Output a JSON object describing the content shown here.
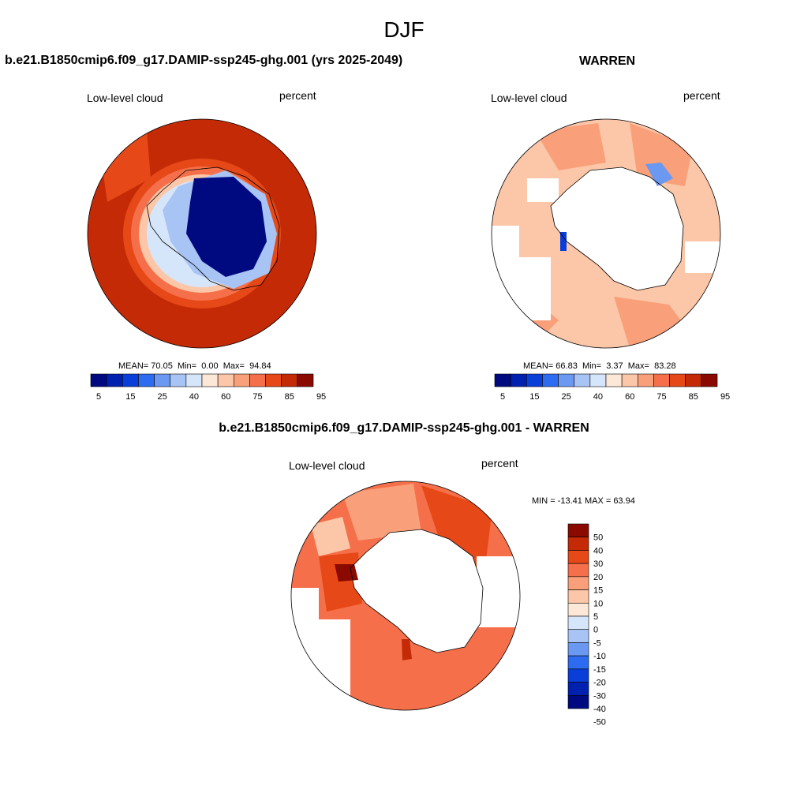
{
  "figure_title": "DJF",
  "colors": {
    "abs_levels": [
      "#000a80",
      "#0020b0",
      "#0a3ed8",
      "#2d6bf0",
      "#6b98f0",
      "#a8c4f4",
      "#d6e6fa",
      "#fde8d8",
      "#fcc6a8",
      "#f9a07a",
      "#f5704a",
      "#e64818",
      "#c42a06",
      "#8a0a00"
    ],
    "diff_levels": [
      "#000a80",
      "#0020b0",
      "#0a3ed8",
      "#2d6bf0",
      "#6b98f0",
      "#a8c4f4",
      "#d6e6fa",
      "#fde8d8",
      "#fcc6a8",
      "#f9a07a",
      "#f5704a",
      "#e64818",
      "#c42a06",
      "#8a0a00"
    ]
  },
  "panels": [
    {
      "title": "b.e21.B1850cmip6.f09_g17.DAMIP-ssp245-ghg.001 (yrs 2025-2049)",
      "left_label": "Low-level cloud",
      "right_label": "percent",
      "stats": {
        "mean_label": "MEAN=",
        "mean": "70.05",
        "min_label": "Min=",
        "min": "0.00",
        "max_label": "Max=",
        "max": "94.84"
      },
      "colorbar_labels": [
        "5",
        "15",
        "25",
        "40",
        "60",
        "75",
        "85",
        "95"
      ]
    },
    {
      "title": "WARREN",
      "left_label": "Low-level cloud",
      "right_label": "percent",
      "stats": {
        "mean_label": "MEAN=",
        "mean": "66.83",
        "min_label": "Min=",
        "min": "3.37",
        "max_label": "Max=",
        "max": "83.28"
      },
      "colorbar_labels": [
        "5",
        "15",
        "25",
        "40",
        "60",
        "75",
        "85",
        "95"
      ]
    },
    {
      "title": "b.e21.B1850cmip6.f09_g17.DAMIP-ssp245-ghg.001 - WARREN",
      "left_label": "Low-level cloud",
      "right_label": "percent",
      "stats_text": "MIN = -13.41  MAX =  63.94",
      "colorbar_labels": [
        "50",
        "40",
        "30",
        "20",
        "15",
        "10",
        "5",
        "0",
        "-5",
        "-10",
        "-15",
        "-20",
        "-30",
        "-40",
        "-50"
      ]
    }
  ]
}
